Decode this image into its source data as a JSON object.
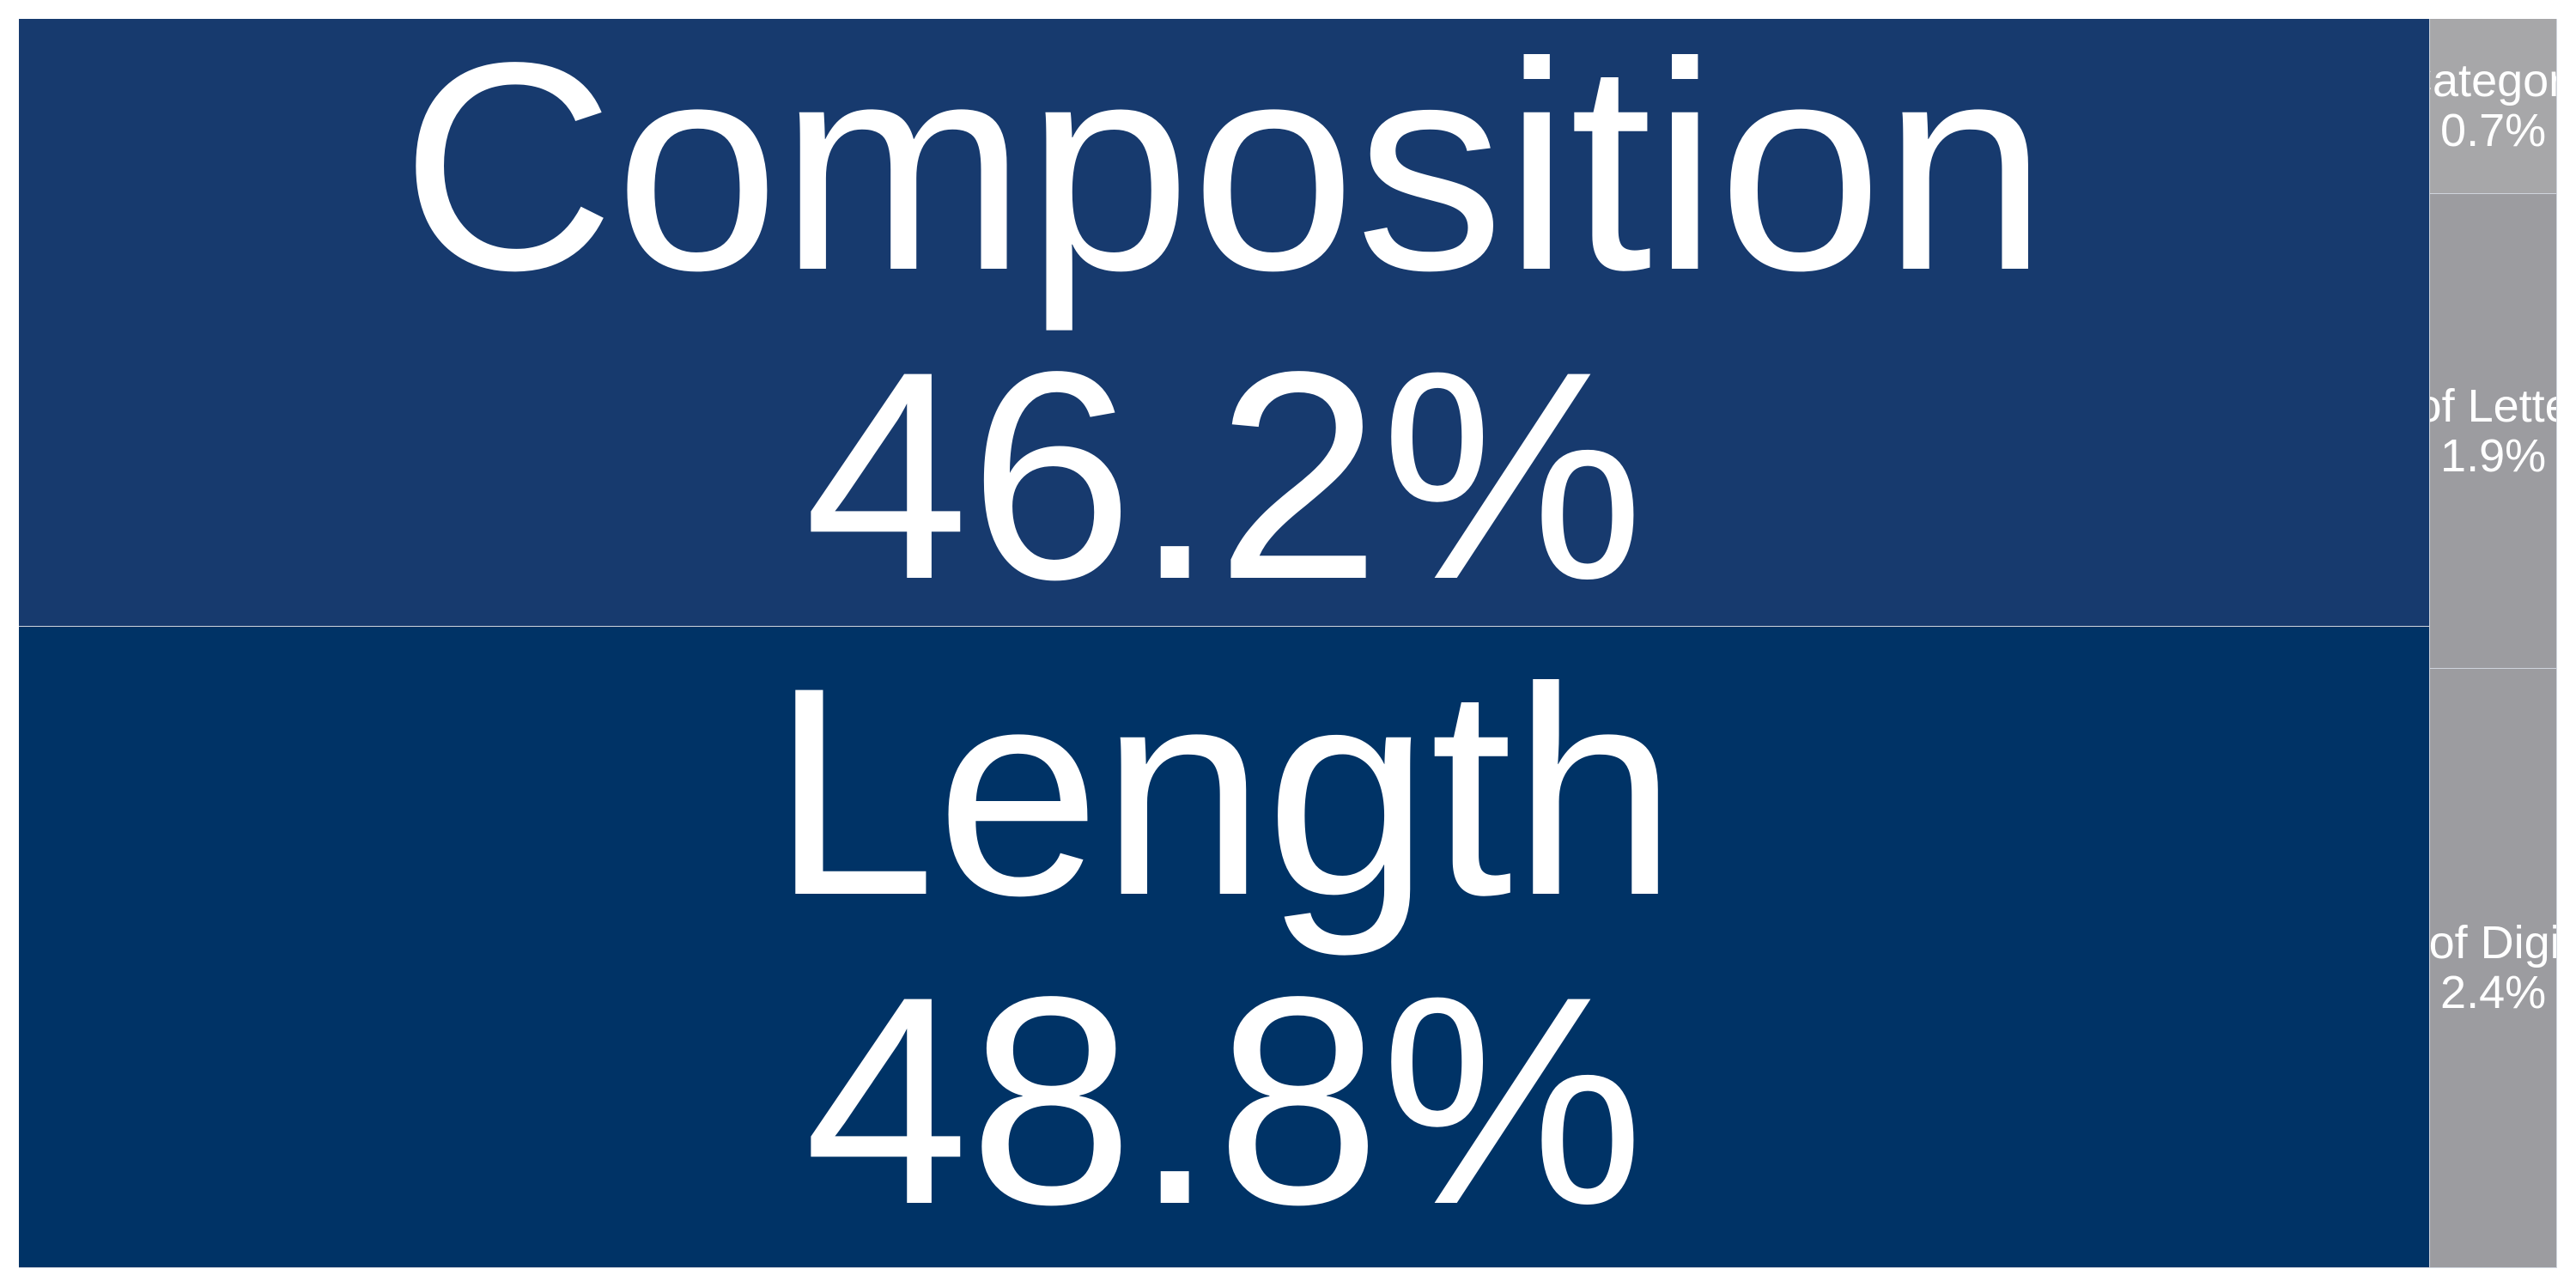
{
  "chart_data": {
    "type": "treemap",
    "items": [
      {
        "name": "Length",
        "label": "48.8%",
        "value": 48.8,
        "color": "#003366"
      },
      {
        "name": "Composition",
        "label": "46.2%",
        "value": 46.2,
        "color": "#173A6E"
      },
      {
        "name": "# of Digits",
        "label": "2.4%",
        "value": 2.4,
        "color": "#9C9CA0"
      },
      {
        "name": "# of Letters",
        "label": "1.9%",
        "value": 1.9,
        "color": "#9C9CA0"
      },
      {
        "name": "Category",
        "label": "0.7%",
        "value": 0.7,
        "color": "#A7A7A9"
      }
    ]
  }
}
